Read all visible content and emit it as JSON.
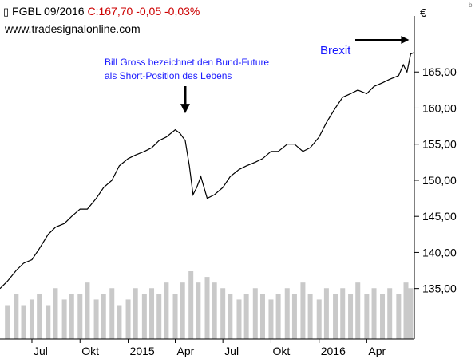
{
  "header": {
    "symbol": "FGBL 09/2016",
    "quote": "C:167,70 -0,05 -0,03%",
    "source": "www.tradesignalonline.com",
    "quote_color": "#cc0000"
  },
  "currency": "€",
  "corner_mark": "b",
  "chart_data": {
    "type": "line",
    "title": "FGBL 09/2016",
    "xlabel": "",
    "ylabel": "",
    "ylim": [
      128,
      170
    ],
    "y_ticks": [
      "165,00",
      "160,00",
      "155,00",
      "150,00",
      "145,00",
      "140,00",
      "135,00"
    ],
    "y_tick_values": [
      165,
      160,
      155,
      150,
      145,
      140,
      135
    ],
    "x_ticks": [
      "Jul",
      "Okt",
      "2015",
      "Apr",
      "Jul",
      "Okt",
      "2016",
      "Apr"
    ],
    "x_tick_dates": [
      "2014-07-01",
      "2014-10-01",
      "2015-01-01",
      "2015-04-01",
      "2015-07-01",
      "2015-10-01",
      "2016-01-01",
      "2016-04-01"
    ],
    "x_range": [
      "2014-05-01",
      "2016-07-01"
    ],
    "grid": false,
    "series": [
      {
        "name": "FGBL 09/2016",
        "x": [
          "2014-05-01",
          "2014-05-15",
          "2014-06-01",
          "2014-06-15",
          "2014-07-01",
          "2014-07-15",
          "2014-08-01",
          "2014-08-15",
          "2014-09-01",
          "2014-09-15",
          "2014-10-01",
          "2014-10-15",
          "2014-11-01",
          "2014-11-15",
          "2014-12-01",
          "2014-12-15",
          "2015-01-01",
          "2015-01-15",
          "2015-02-01",
          "2015-02-15",
          "2015-03-01",
          "2015-03-15",
          "2015-04-01",
          "2015-04-10",
          "2015-04-20",
          "2015-04-28",
          "2015-05-05",
          "2015-05-12",
          "2015-05-20",
          "2015-06-01",
          "2015-06-15",
          "2015-07-01",
          "2015-07-15",
          "2015-08-01",
          "2015-08-15",
          "2015-09-01",
          "2015-09-15",
          "2015-10-01",
          "2015-10-15",
          "2015-11-01",
          "2015-11-15",
          "2015-12-01",
          "2015-12-15",
          "2016-01-01",
          "2016-01-15",
          "2016-02-01",
          "2016-02-15",
          "2016-03-01",
          "2016-03-15",
          "2016-04-01",
          "2016-04-15",
          "2016-05-01",
          "2016-05-15",
          "2016-06-01",
          "2016-06-10",
          "2016-06-17",
          "2016-06-24",
          "2016-07-01"
        ],
        "values": [
          135.0,
          136.0,
          137.5,
          138.5,
          139.0,
          140.5,
          142.5,
          143.5,
          144.0,
          145.0,
          146.0,
          146.0,
          147.5,
          149.0,
          150.0,
          152.0,
          153.0,
          153.5,
          154.0,
          154.5,
          155.5,
          156.0,
          157.0,
          156.5,
          155.5,
          152.0,
          148.0,
          149.0,
          150.5,
          147.5,
          148.0,
          149.0,
          150.5,
          151.5,
          152.0,
          152.5,
          153.0,
          154.0,
          154.0,
          155.0,
          155.0,
          154.0,
          154.5,
          156.0,
          158.0,
          160.0,
          161.5,
          162.0,
          162.5,
          162.0,
          163.0,
          163.5,
          164.0,
          164.5,
          166.0,
          165.0,
          167.5,
          167.7
        ]
      }
    ],
    "volume": [
      {
        "date": "2014-05-15",
        "value": 3
      },
      {
        "date": "2014-06-01",
        "value": 4
      },
      {
        "date": "2014-06-15",
        "value": 3
      },
      {
        "date": "2014-07-01",
        "value": 3.5
      },
      {
        "date": "2014-07-15",
        "value": 4
      },
      {
        "date": "2014-08-01",
        "value": 3
      },
      {
        "date": "2014-08-15",
        "value": 4.5
      },
      {
        "date": "2014-09-01",
        "value": 3.5
      },
      {
        "date": "2014-09-15",
        "value": 4
      },
      {
        "date": "2014-10-01",
        "value": 4
      },
      {
        "date": "2014-10-15",
        "value": 5
      },
      {
        "date": "2014-11-01",
        "value": 3.5
      },
      {
        "date": "2014-11-15",
        "value": 4
      },
      {
        "date": "2014-12-01",
        "value": 4.5
      },
      {
        "date": "2014-12-15",
        "value": 3
      },
      {
        "date": "2015-01-01",
        "value": 3.5
      },
      {
        "date": "2015-01-15",
        "value": 4.5
      },
      {
        "date": "2015-02-01",
        "value": 4
      },
      {
        "date": "2015-02-15",
        "value": 4.5
      },
      {
        "date": "2015-03-01",
        "value": 4
      },
      {
        "date": "2015-03-15",
        "value": 5
      },
      {
        "date": "2015-04-01",
        "value": 4
      },
      {
        "date": "2015-04-15",
        "value": 5
      },
      {
        "date": "2015-05-01",
        "value": 6
      },
      {
        "date": "2015-05-15",
        "value": 5
      },
      {
        "date": "2015-06-01",
        "value": 5.5
      },
      {
        "date": "2015-06-15",
        "value": 5
      },
      {
        "date": "2015-07-01",
        "value": 4.5
      },
      {
        "date": "2015-07-15",
        "value": 4
      },
      {
        "date": "2015-08-01",
        "value": 3.5
      },
      {
        "date": "2015-08-15",
        "value": 4
      },
      {
        "date": "2015-09-01",
        "value": 4.5
      },
      {
        "date": "2015-09-15",
        "value": 4
      },
      {
        "date": "2015-10-01",
        "value": 3.5
      },
      {
        "date": "2015-10-15",
        "value": 4
      },
      {
        "date": "2015-11-01",
        "value": 4.5
      },
      {
        "date": "2015-11-15",
        "value": 4
      },
      {
        "date": "2015-12-01",
        "value": 5
      },
      {
        "date": "2015-12-15",
        "value": 4
      },
      {
        "date": "2016-01-01",
        "value": 3.5
      },
      {
        "date": "2016-01-15",
        "value": 4.5
      },
      {
        "date": "2016-02-01",
        "value": 4
      },
      {
        "date": "2016-02-15",
        "value": 4.5
      },
      {
        "date": "2016-03-01",
        "value": 4
      },
      {
        "date": "2016-03-15",
        "value": 5
      },
      {
        "date": "2016-04-01",
        "value": 4
      },
      {
        "date": "2016-04-15",
        "value": 4.5
      },
      {
        "date": "2016-05-01",
        "value": 4
      },
      {
        "date": "2016-05-15",
        "value": 4.5
      },
      {
        "date": "2016-06-01",
        "value": 4
      },
      {
        "date": "2016-06-15",
        "value": 5
      },
      {
        "date": "2016-06-24",
        "value": 4.5
      }
    ],
    "volume_max": 6,
    "annotations": [
      {
        "lines": [
          "Bill Gross bezeichnet den Bund-Future",
          "als Short-Position des Lebens"
        ],
        "color": "#1a1aff",
        "arrow": "down",
        "target_date": "2015-04-20",
        "target_value": 157.5
      },
      {
        "lines": [
          "Brexit"
        ],
        "color": "#1a1aff",
        "arrow": "right",
        "target_date": "2016-06-24",
        "target_value": 167.7
      }
    ]
  }
}
